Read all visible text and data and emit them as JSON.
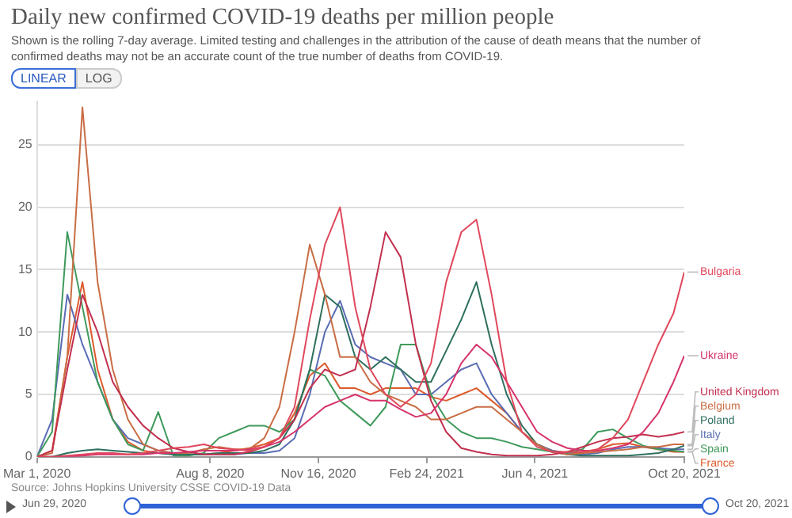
{
  "chart_data": {
    "type": "line",
    "title": "Daily new confirmed COVID-19 deaths per million people",
    "subtitle": "Shown is the rolling 7-day average. Limited testing and challenges in the attribution of the cause of death means that the number of confirmed deaths may not be an accurate count of the true number of deaths from COVID-19.",
    "annotations": [
      "LINEAR",
      "LOG",
      "Source: Johns Hopkins University CSSE COVID-19 Data",
      "Jun 29, 2020",
      "Oct 20, 2021"
    ],
    "x": [
      "2020-03-01",
      "2020-03-15",
      "2020-03-29",
      "2020-04-12",
      "2020-04-26",
      "2020-05-10",
      "2020-05-24",
      "2020-06-07",
      "2020-06-21",
      "2020-07-05",
      "2020-07-19",
      "2020-08-02",
      "2020-08-16",
      "2020-08-30",
      "2020-09-13",
      "2020-09-27",
      "2020-10-11",
      "2020-10-25",
      "2020-11-08",
      "2020-11-22",
      "2020-12-06",
      "2020-12-20",
      "2021-01-03",
      "2021-01-17",
      "2021-01-31",
      "2021-02-14",
      "2021-02-28",
      "2021-03-14",
      "2021-03-28",
      "2021-04-11",
      "2021-04-25",
      "2021-05-09",
      "2021-05-23",
      "2021-06-06",
      "2021-06-20",
      "2021-07-04",
      "2021-07-18",
      "2021-08-01",
      "2021-08-15",
      "2021-08-29",
      "2021-09-12",
      "2021-09-26",
      "2021-10-10",
      "2021-10-20"
    ],
    "xlim": [
      "2020-03-01",
      "2021-10-20"
    ],
    "xticks": [
      {
        "value": "2020-03-01",
        "label": "Mar 1, 2020"
      },
      {
        "value": "2020-08-08",
        "label": "Aug 8, 2020"
      },
      {
        "value": "2020-11-16",
        "label": "Nov 16, 2020"
      },
      {
        "value": "2021-02-24",
        "label": "Feb 24, 2021"
      },
      {
        "value": "2021-06-04",
        "label": "Jun 4, 2021"
      },
      {
        "value": "2021-10-20",
        "label": "Oct 20, 2021"
      }
    ],
    "ylim": [
      0,
      28.5
    ],
    "yticks": [
      0,
      5,
      10,
      15,
      20,
      25
    ],
    "grid": "y",
    "series": [
      {
        "name": "Bulgaria",
        "color": "#e0485d",
        "values": [
          0,
          0,
          0.1,
          0.2,
          0.3,
          0.3,
          0.2,
          0.3,
          0.5,
          0.7,
          0.8,
          1,
          0.7,
          0.6,
          0.5,
          0.8,
          1.5,
          4,
          11,
          17,
          20,
          12,
          7,
          5,
          4,
          5,
          7.5,
          14,
          18,
          19,
          13,
          6,
          2,
          0.8,
          0.4,
          0.4,
          0.4,
          0.6,
          1.5,
          3,
          6,
          9,
          11.5,
          14.8
        ]
      },
      {
        "name": "Ukraine",
        "color": "#d6336c",
        "values": [
          0,
          0,
          0,
          0.1,
          0.2,
          0.2,
          0.2,
          0.2,
          0.3,
          0.3,
          0.4,
          0.5,
          0.5,
          0.5,
          0.6,
          0.8,
          1.2,
          2,
          3,
          4,
          4.5,
          5,
          4.5,
          4.5,
          3.8,
          3.2,
          3.5,
          5,
          7.5,
          9,
          8,
          6,
          4,
          2,
          1.2,
          0.7,
          0.5,
          0.5,
          0.7,
          1,
          2,
          3.5,
          6,
          8.1
        ]
      },
      {
        "name": "United Kingdom",
        "color": "#c2304f",
        "values": [
          0,
          0.5,
          7,
          13,
          10,
          6,
          4,
          2.5,
          1.5,
          0.7,
          0.4,
          0.2,
          0.2,
          0.2,
          0.4,
          0.8,
          1.5,
          3,
          5.5,
          7,
          6.5,
          7,
          12,
          18,
          16,
          9,
          4.5,
          2,
          0.7,
          0.4,
          0.2,
          0.1,
          0.1,
          0.1,
          0.2,
          0.4,
          0.8,
          1.2,
          1.5,
          1.6,
          1.8,
          1.6,
          1.8,
          2
        ]
      },
      {
        "name": "Belgium",
        "color": "#c96d45",
        "values": [
          0,
          0.3,
          8,
          28,
          14,
          7,
          3,
          1,
          0.5,
          0.3,
          0.3,
          0.6,
          0.8,
          0.6,
          0.6,
          1.5,
          4,
          10,
          17,
          13,
          8,
          8,
          6,
          5,
          4.5,
          4,
          3,
          3,
          3.5,
          4,
          4,
          3,
          2,
          1,
          0.4,
          0.2,
          0.3,
          0.4,
          0.5,
          0.6,
          0.8,
          0.8,
          1,
          1
        ]
      },
      {
        "name": "Poland",
        "color": "#2e6f5e",
        "values": [
          0,
          0,
          0.3,
          0.5,
          0.6,
          0.5,
          0.4,
          0.3,
          0.3,
          0.2,
          0.2,
          0.2,
          0.3,
          0.3,
          0.3,
          0.5,
          1,
          3,
          7,
          13,
          12,
          8,
          7,
          8,
          7,
          6,
          6,
          8.5,
          11,
          14,
          9,
          5,
          2.5,
          1,
          0.4,
          0.2,
          0.1,
          0.1,
          0.1,
          0.1,
          0.2,
          0.3,
          0.6,
          0.9
        ]
      },
      {
        "name": "Spain",
        "color": "#3f9a5c",
        "values": [
          0,
          2,
          18,
          12,
          6,
          3,
          1,
          0.5,
          3.6,
          0.1,
          0.1,
          0.3,
          1.5,
          2,
          2.5,
          2.5,
          2,
          3,
          7,
          6.5,
          4.5,
          3.5,
          2.5,
          4,
          9,
          9,
          5,
          3,
          2,
          1.5,
          1.5,
          1.2,
          0.8,
          0.6,
          0.4,
          0.3,
          0.6,
          2,
          2.2,
          1.5,
          0.9,
          0.6,
          0.5,
          0.4
        ]
      },
      {
        "name": "Italy",
        "color": "#5a6db3",
        "values": [
          0,
          3,
          13,
          9,
          6,
          3,
          1.5,
          1,
          0.5,
          0.3,
          0.2,
          0.2,
          0.2,
          0.2,
          0.3,
          0.3,
          0.5,
          1.5,
          5,
          10,
          12.5,
          9,
          8,
          7.5,
          7,
          5,
          5,
          6,
          7,
          7.5,
          5,
          3.5,
          2,
          1,
          0.5,
          0.3,
          0.2,
          0.3,
          0.6,
          0.8,
          0.8,
          0.7,
          0.6,
          0.6
        ]
      },
      {
        "name": "France",
        "color": "#dc5a2c",
        "values": [
          0,
          0.5,
          8,
          14,
          7,
          3,
          1.2,
          0.5,
          0.3,
          0.2,
          0.2,
          0.2,
          0.3,
          0.5,
          0.7,
          1,
          1.5,
          3.5,
          6.5,
          7.5,
          5.5,
          5.5,
          5,
          5.5,
          5.5,
          5.5,
          4.8,
          4.5,
          5,
          5.5,
          4.5,
          3.5,
          2,
          1,
          0.5,
          0.3,
          0.3,
          0.6,
          1,
          1.1,
          0.8,
          0.6,
          0.4,
          0.4
        ]
      }
    ]
  }
}
